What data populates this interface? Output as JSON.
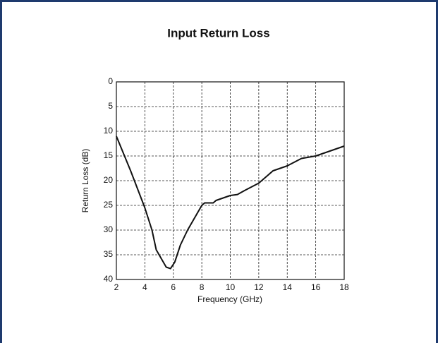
{
  "chart_data": {
    "type": "line",
    "title": "Input Return Loss",
    "x_label": "Frequency (GHz)",
    "y_label": "Return Loss (dB)",
    "x": [
      2,
      3,
      4,
      4.5,
      4.8,
      5.2,
      5.5,
      5.8,
      6.1,
      6.5,
      7,
      7.5,
      8,
      8.2,
      8.8,
      9,
      10,
      10.5,
      11,
      12,
      13,
      14,
      15,
      16,
      17,
      18
    ],
    "series": [
      {
        "name": "Return Loss",
        "color": "#111111",
        "values": [
          11,
          18,
          25.5,
          30,
          34,
          36,
          37.5,
          37.8,
          36.5,
          33,
          30,
          27.5,
          25,
          24.5,
          24.5,
          24,
          23,
          22.8,
          22,
          20.5,
          18,
          17,
          15.5,
          15,
          14,
          13
        ]
      }
    ],
    "xlim": [
      2,
      18
    ],
    "xticks": [
      2,
      4,
      6,
      8,
      10,
      12,
      14,
      16,
      18
    ],
    "ylim": [
      40,
      0
    ],
    "yticks": [
      0,
      5,
      10,
      15,
      20,
      25,
      30,
      35,
      40
    ],
    "grid": true
  }
}
